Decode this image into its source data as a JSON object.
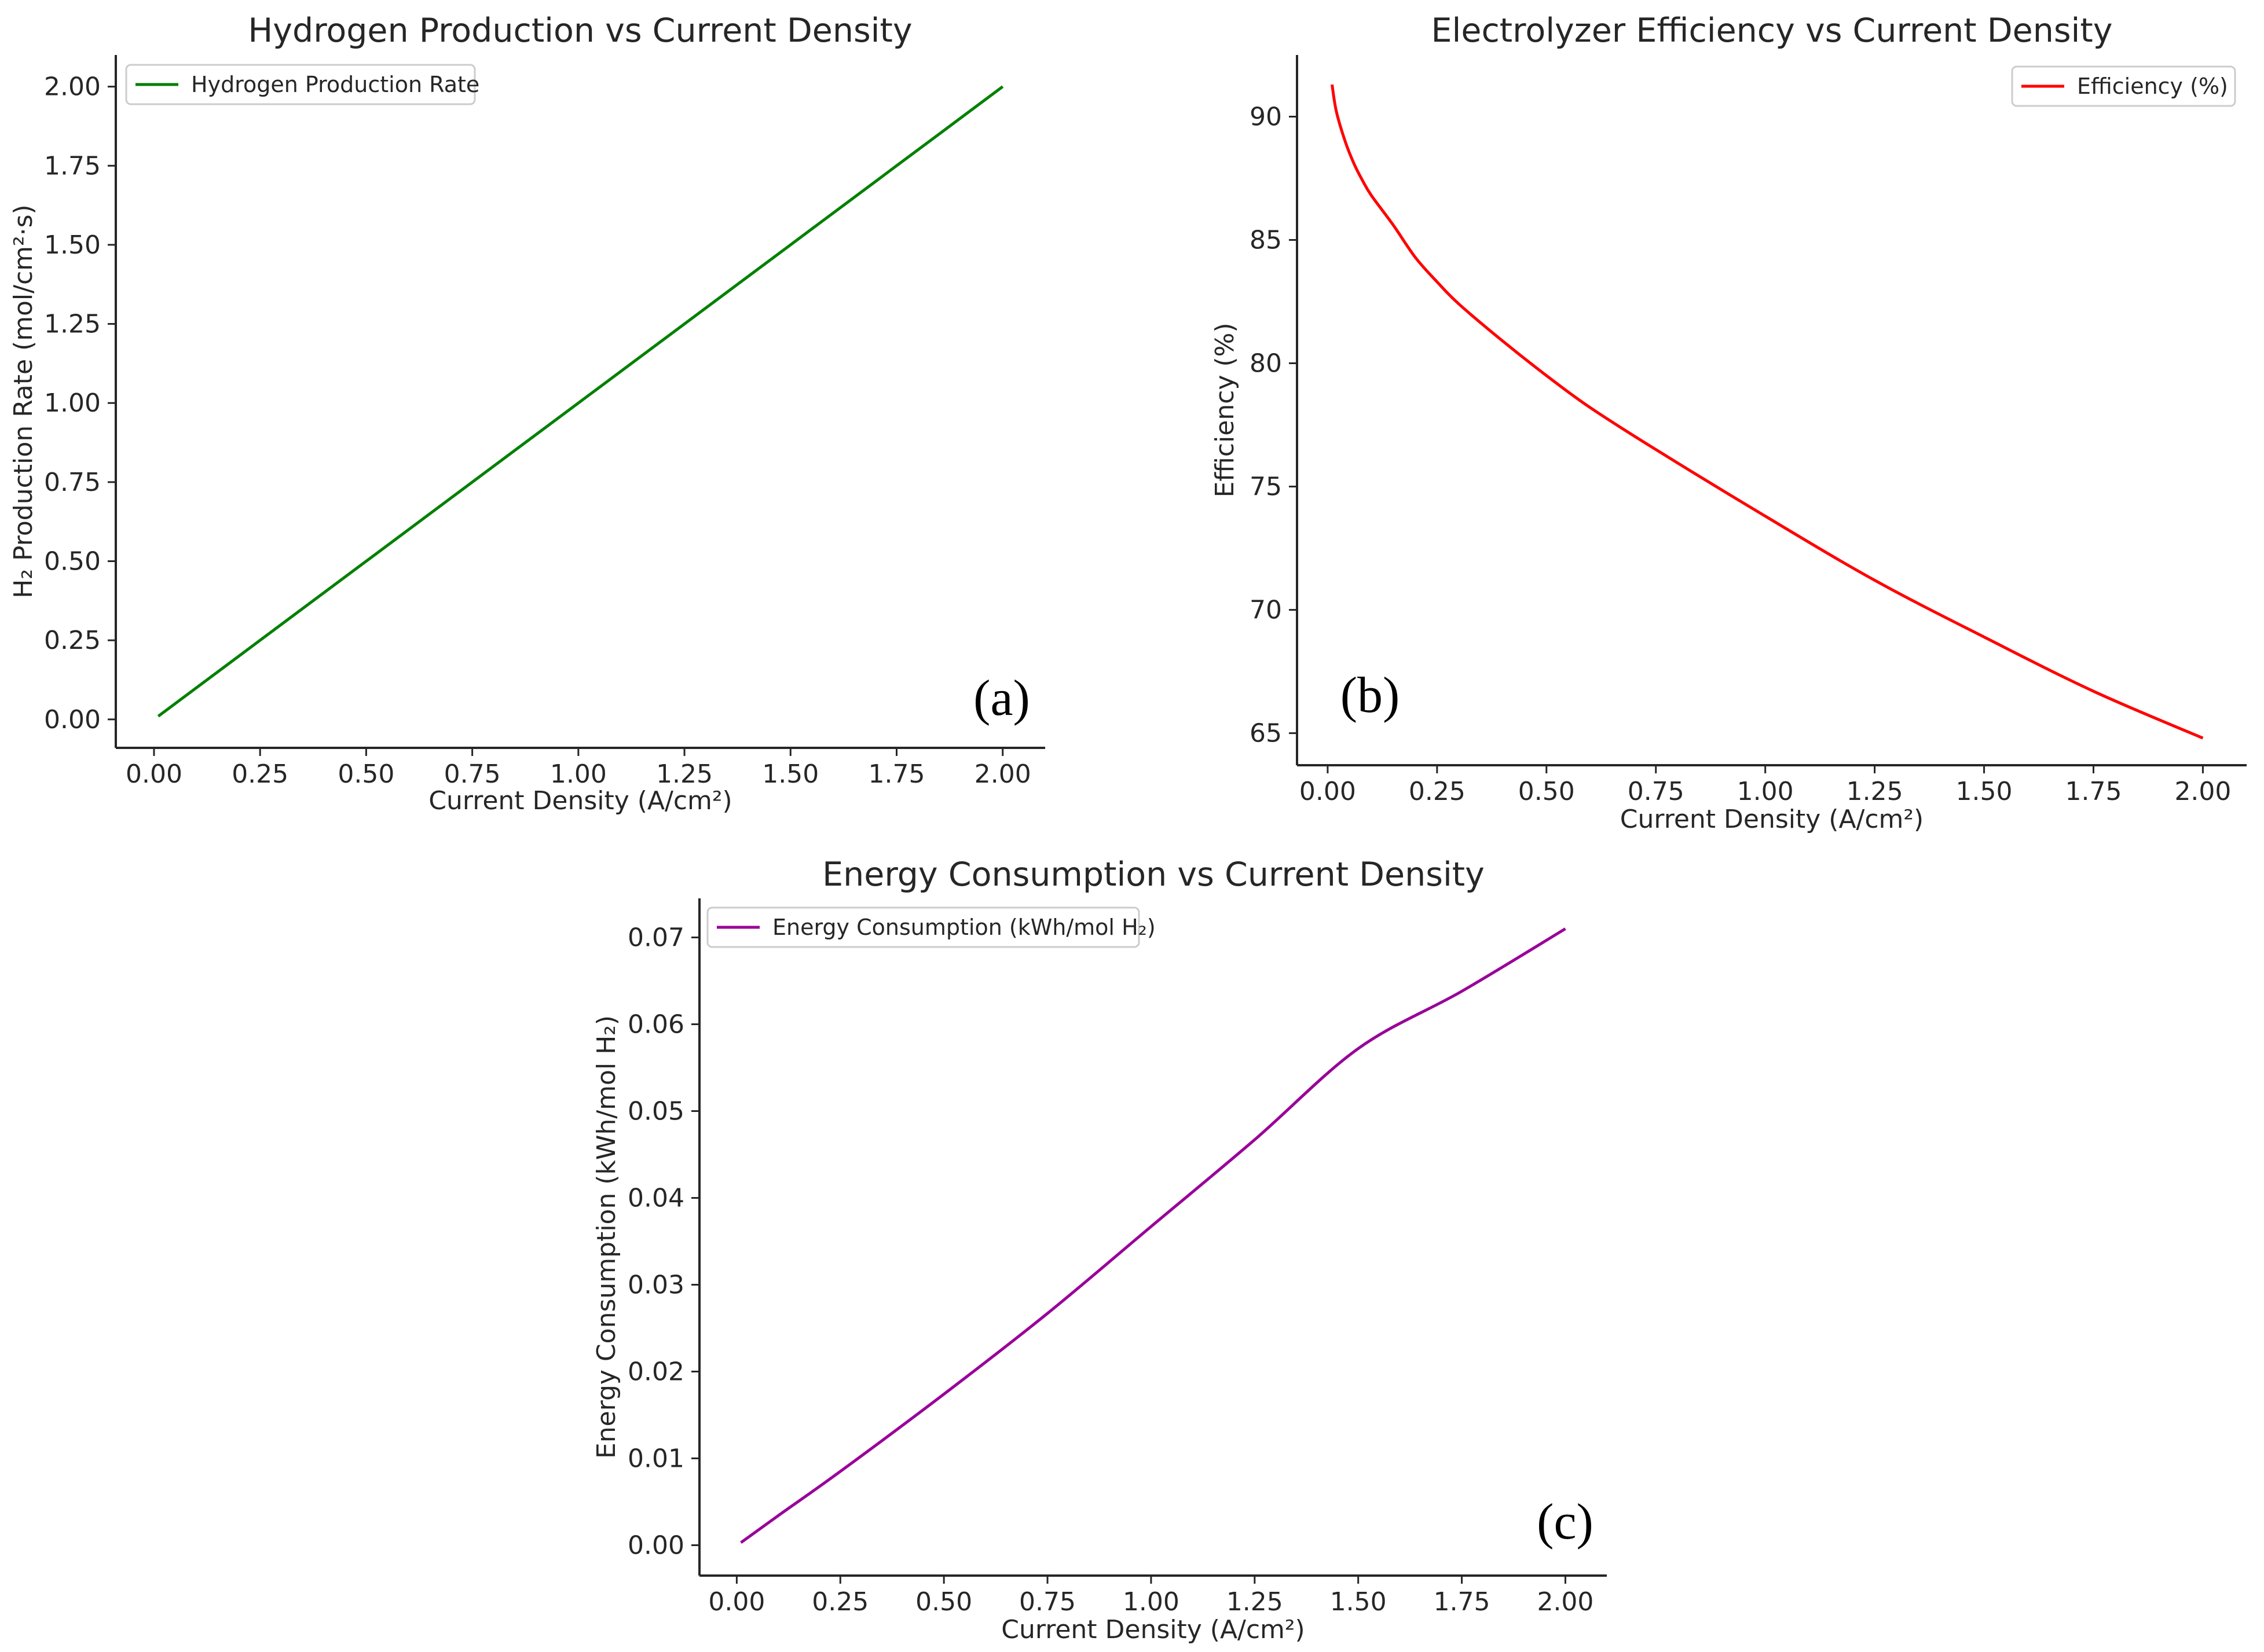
{
  "chart_data": [
    {
      "id": "a",
      "type": "line",
      "title": "Hydrogen Production vs Current Density",
      "xlabel": "Current Density (A/cm²)",
      "ylabel": "H₂ Production Rate (mol/cm²·s)",
      "xlim": [
        -0.09,
        2.1
      ],
      "ylim": [
        -0.09,
        2.1
      ],
      "xticks": [
        0.0,
        0.25,
        0.5,
        0.75,
        1.0,
        1.25,
        1.5,
        1.75,
        2.0
      ],
      "xtick_labels": [
        "0.00",
        "0.25",
        "0.50",
        "0.75",
        "1.00",
        "1.25",
        "1.50",
        "1.75",
        "2.00"
      ],
      "yticks": [
        0.0,
        0.25,
        0.5,
        0.75,
        1.0,
        1.25,
        1.5,
        1.75,
        2.0
      ],
      "ytick_labels": [
        "0.00",
        "0.25",
        "0.50",
        "0.75",
        "1.00",
        "1.25",
        "1.50",
        "1.75",
        "2.00"
      ],
      "grid": false,
      "legend_position": "top-left",
      "panel_label": "(a)",
      "series": [
        {
          "name": "Hydrogen Production Rate",
          "color": "#008000",
          "x": [
            0.01,
            0.25,
            0.5,
            0.75,
            1.0,
            1.25,
            1.5,
            1.75,
            2.0
          ],
          "y": [
            0.01,
            0.25,
            0.5,
            0.75,
            1.0,
            1.25,
            1.5,
            1.75,
            2.0
          ]
        }
      ]
    },
    {
      "id": "b",
      "type": "line",
      "title": "Electrolyzer Efficiency vs Current Density",
      "xlabel": "Current Density (A/cm²)",
      "ylabel": "Efficiency (%)",
      "xlim": [
        -0.07,
        2.1
      ],
      "ylim": [
        63.7,
        92.5
      ],
      "xticks": [
        0.0,
        0.25,
        0.5,
        0.75,
        1.0,
        1.25,
        1.5,
        1.75,
        2.0
      ],
      "xtick_labels": [
        "0.00",
        "0.25",
        "0.50",
        "0.75",
        "1.00",
        "1.25",
        "1.50",
        "1.75",
        "2.00"
      ],
      "yticks": [
        65,
        70,
        75,
        80,
        85,
        90
      ],
      "ytick_labels": [
        "65",
        "70",
        "75",
        "80",
        "85",
        "90"
      ],
      "grid": false,
      "legend_position": "top-right",
      "panel_label": "(b)",
      "series": [
        {
          "name": "Efficiency (%)",
          "color": "#ff0000",
          "x": [
            0.01,
            0.02,
            0.04,
            0.06,
            0.08,
            0.1,
            0.15,
            0.2,
            0.25,
            0.3,
            0.4,
            0.5,
            0.6,
            0.75,
            1.0,
            1.25,
            1.5,
            1.75,
            2.0
          ],
          "y": [
            91.3,
            90.2,
            89.0,
            88.1,
            87.4,
            86.8,
            85.6,
            84.3,
            83.3,
            82.4,
            80.9,
            79.5,
            78.2,
            76.5,
            73.8,
            71.2,
            68.9,
            66.7,
            64.8
          ]
        }
      ]
    },
    {
      "id": "c",
      "type": "line",
      "title": "Energy Consumption vs Current Density",
      "xlabel": "Current Density (A/cm²)",
      "ylabel": "Energy Consumption (kWh/mol H₂)",
      "xlim": [
        -0.09,
        2.1
      ],
      "ylim": [
        -0.0035,
        0.0745
      ],
      "xticks": [
        0.0,
        0.25,
        0.5,
        0.75,
        1.0,
        1.25,
        1.5,
        1.75,
        2.0
      ],
      "xtick_labels": [
        "0.00",
        "0.25",
        "0.50",
        "0.75",
        "1.00",
        "1.25",
        "1.50",
        "1.75",
        "2.00"
      ],
      "yticks": [
        0.0,
        0.01,
        0.02,
        0.03,
        0.04,
        0.05,
        0.06,
        0.07
      ],
      "ytick_labels": [
        "0.00",
        "0.01",
        "0.02",
        "0.03",
        "0.04",
        "0.05",
        "0.06",
        "0.07"
      ],
      "grid": false,
      "legend_position": "top-left",
      "panel_label": "(c)",
      "series": [
        {
          "name": "Energy Consumption (kWh/mol H₂)",
          "color": "#990099",
          "x": [
            0.01,
            0.1,
            0.25,
            0.5,
            0.75,
            1.0,
            1.25,
            1.5,
            1.75,
            2.0
          ],
          "y": [
            0.0003,
            0.0034,
            0.0085,
            0.0174,
            0.0267,
            0.0367,
            0.0467,
            0.0572,
            0.0638,
            0.071
          ]
        }
      ]
    }
  ]
}
